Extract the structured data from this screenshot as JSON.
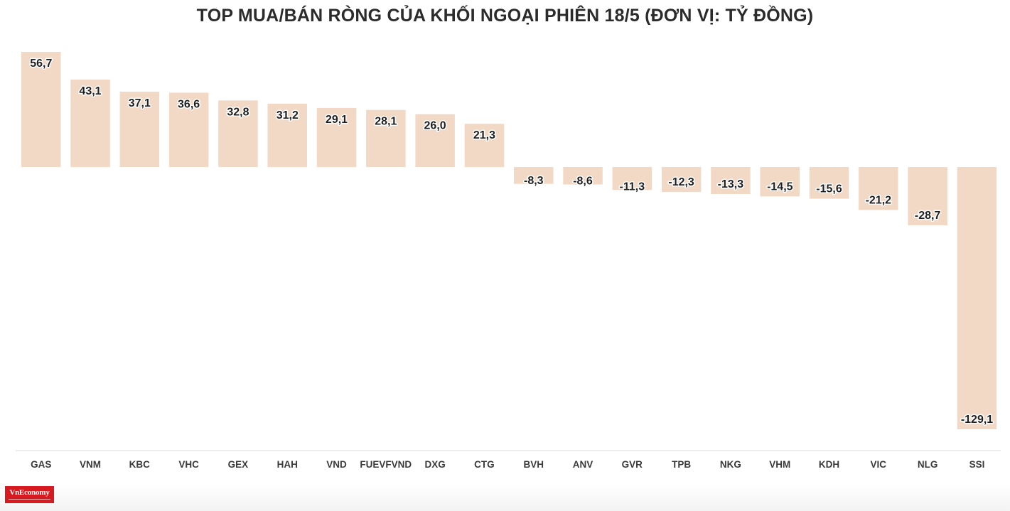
{
  "chart_data": {
    "type": "bar",
    "title": "TOP MUA/BÁN RÒNG CỦA KHỐI NGOẠI PHIÊN 18/5 (ĐƠN VỊ: TỶ ĐỒNG)",
    "categories": [
      "GAS",
      "VNM",
      "KBC",
      "VHC",
      "GEX",
      "HAH",
      "VND",
      "FUEVFVND",
      "DXG",
      "CTG",
      "BVH",
      "ANV",
      "GVR",
      "TPB",
      "NKG",
      "VHM",
      "KDH",
      "VIC",
      "NLG",
      "SSI"
    ],
    "values": [
      56.7,
      43.1,
      37.1,
      36.6,
      32.8,
      31.2,
      29.1,
      28.1,
      26.0,
      21.3,
      -8.3,
      -8.6,
      -11.3,
      -12.3,
      -13.3,
      -14.5,
      -15.6,
      -21.2,
      -28.7,
      -129.1
    ],
    "value_labels": [
      "56,7",
      "43,1",
      "37,1",
      "36,6",
      "32,8",
      "31,2",
      "29,1",
      "28,1",
      "26,0",
      "21,3",
      "-8,3",
      "-8,6",
      "-11,3",
      "-12,3",
      "-13,3",
      "-14,5",
      "-15,6",
      "-21,2",
      "-28,7",
      "-129,1"
    ],
    "ylim": [
      -129.1,
      56.7
    ],
    "bar_color": "#f2d9c6",
    "grid": false,
    "legend": "none"
  },
  "logo": {
    "text": "VnEconomy"
  }
}
